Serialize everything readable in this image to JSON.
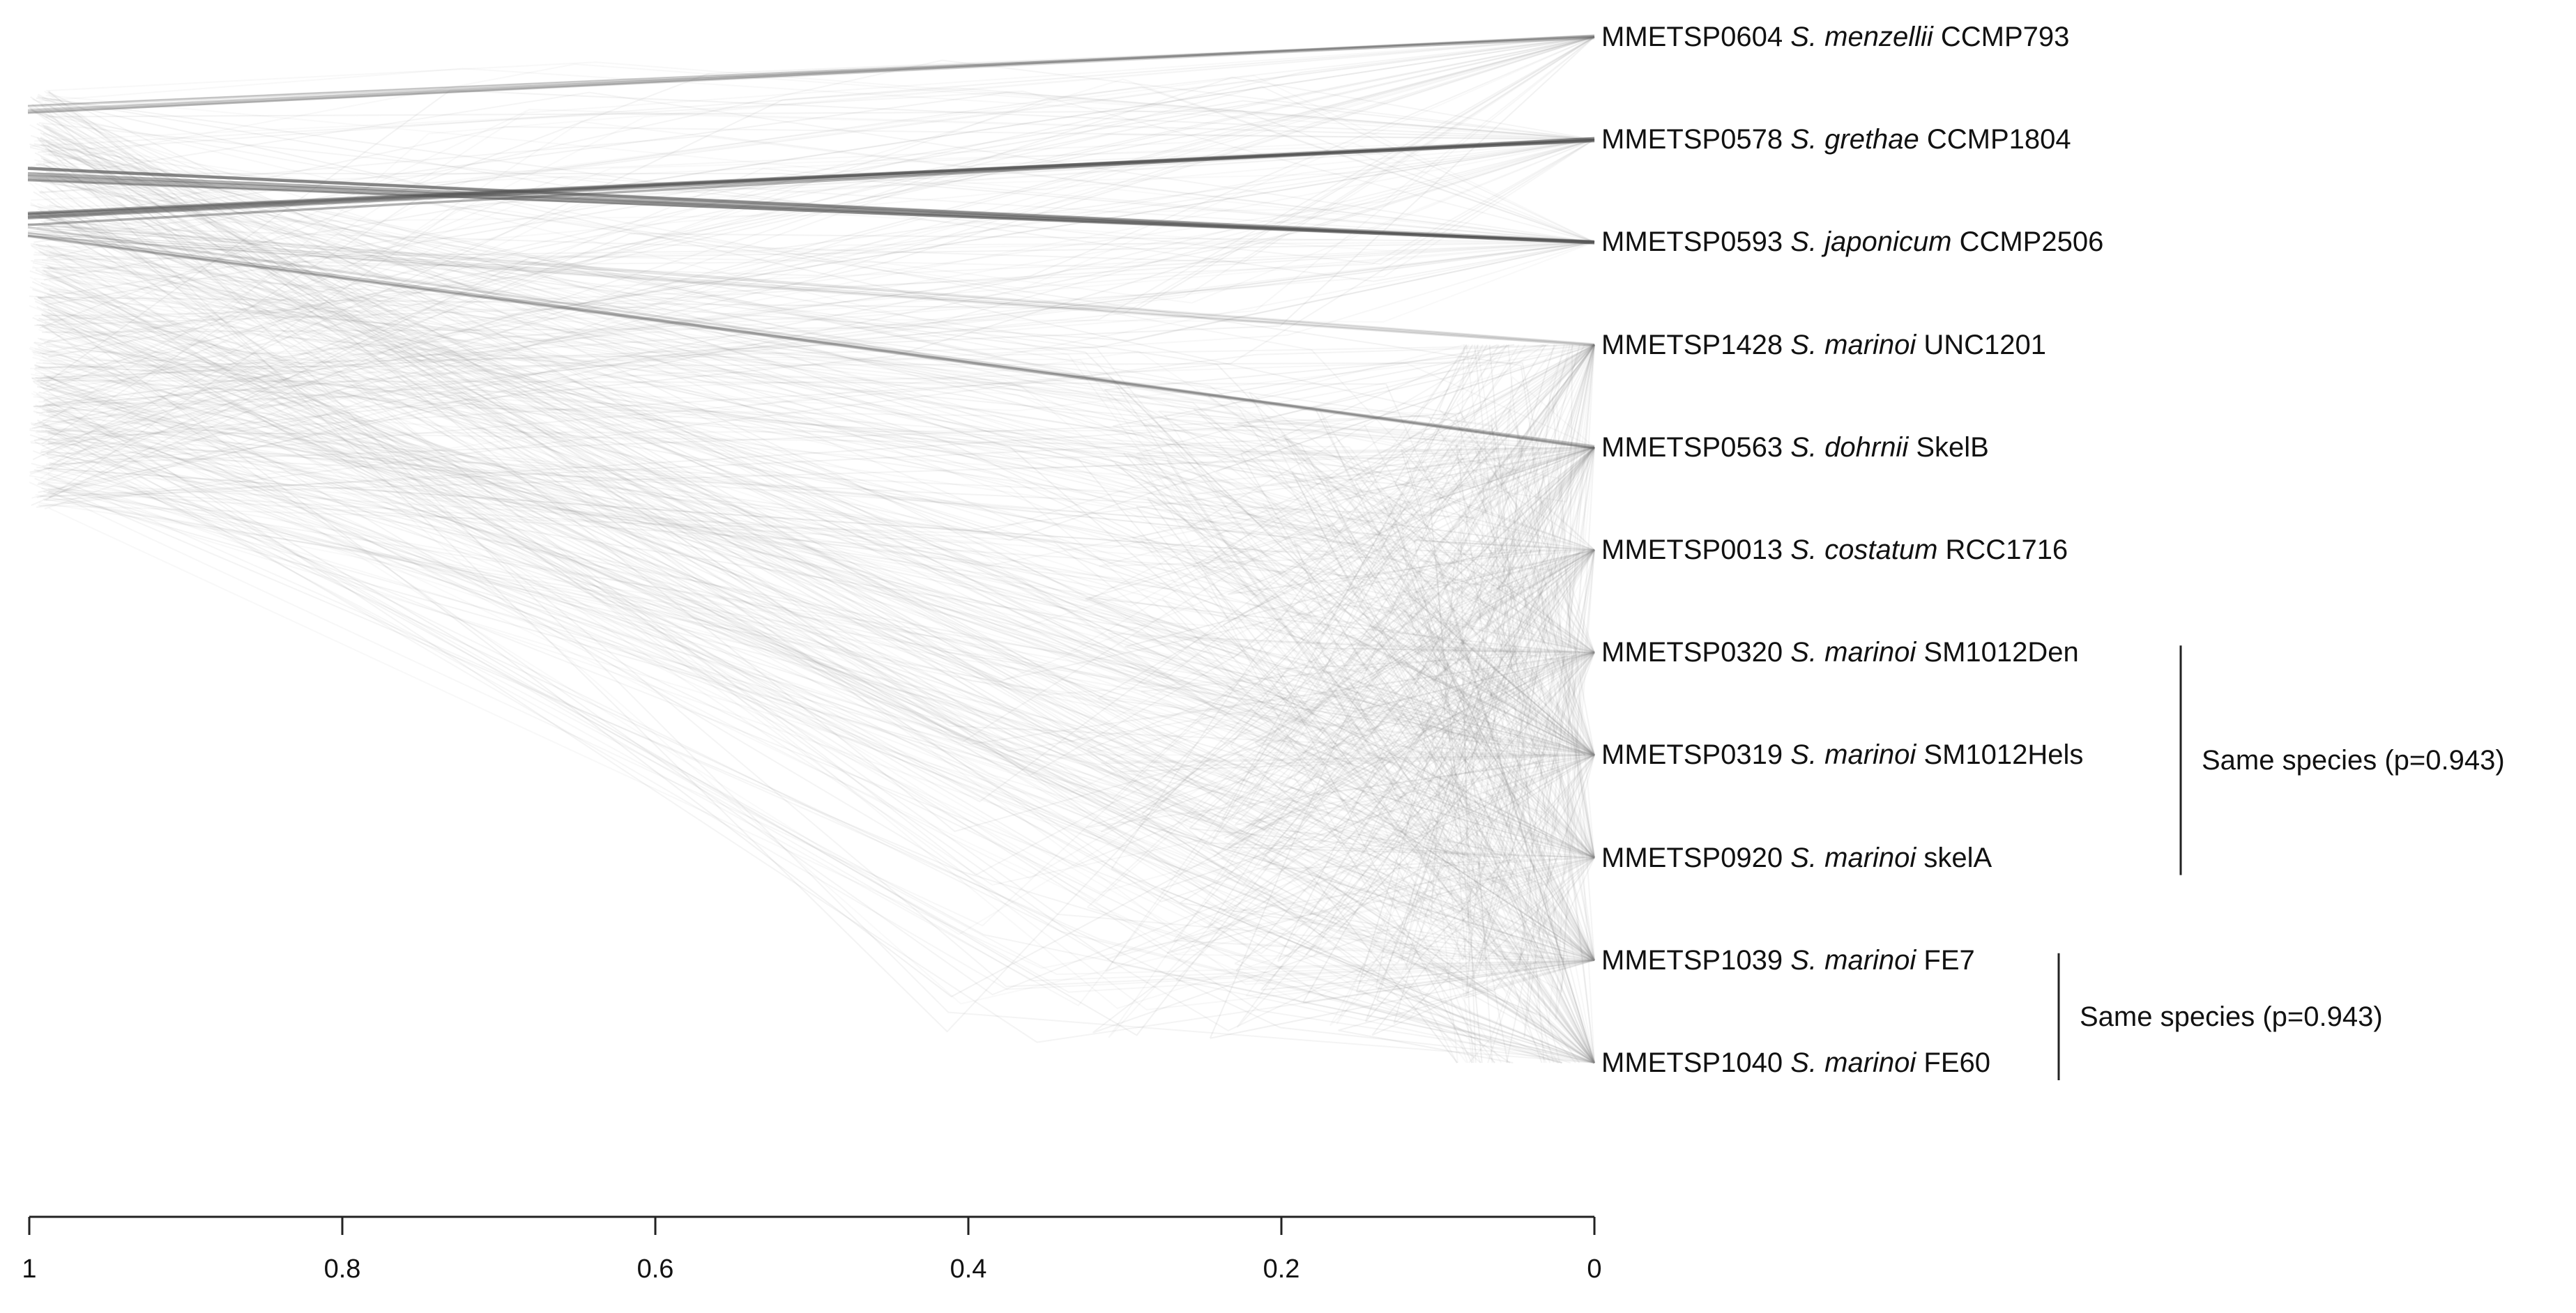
{
  "leaves": [
    {
      "id": "MMETSP0604",
      "genus": "S.",
      "species": "menzellii",
      "strain": "CCMP793"
    },
    {
      "id": "MMETSP0578",
      "genus": "S.",
      "species": "grethae",
      "strain": "CCMP1804"
    },
    {
      "id": "MMETSP0593",
      "genus": "S.",
      "species": "japonicum",
      "strain": "CCMP2506"
    },
    {
      "id": "MMETSP1428",
      "genus": "S.",
      "species": "marinoi",
      "strain": "UNC1201"
    },
    {
      "id": "MMETSP0563",
      "genus": "S.",
      "species": "dohrnii",
      "strain": "SkelB"
    },
    {
      "id": "MMETSP0013",
      "genus": "S.",
      "species": "costatum",
      "strain": "RCC1716"
    },
    {
      "id": "MMETSP0320",
      "genus": "S.",
      "species": "marinoi",
      "strain": "SM1012Den"
    },
    {
      "id": "MMETSP0319",
      "genus": "S.",
      "species": "marinoi",
      "strain": "SM1012Hels"
    },
    {
      "id": "MMETSP0920",
      "genus": "S.",
      "species": "marinoi",
      "strain": "skelA"
    },
    {
      "id": "MMETSP1039",
      "genus": "S.",
      "species": "marinoi",
      "strain": "FE7"
    },
    {
      "id": "MMETSP1040",
      "genus": "S.",
      "species": "marinoi",
      "strain": "FE60"
    }
  ],
  "groups": [
    {
      "label": "Same species (p=0.943)",
      "from_leaf": 6,
      "to_leaf": 8
    },
    {
      "label": "Same species (p=0.943)",
      "from_leaf": 9,
      "to_leaf": 10
    }
  ],
  "axis": {
    "ticks": [
      "1",
      "0.8",
      "0.6",
      "0.4",
      "0.2",
      "0"
    ],
    "tick_values": [
      1,
      0.8,
      0.6,
      0.4,
      0.2,
      0
    ]
  },
  "colors": {
    "tree_line": "#8a8a8a",
    "strong_line": "#555555",
    "axis": "#222222"
  }
}
